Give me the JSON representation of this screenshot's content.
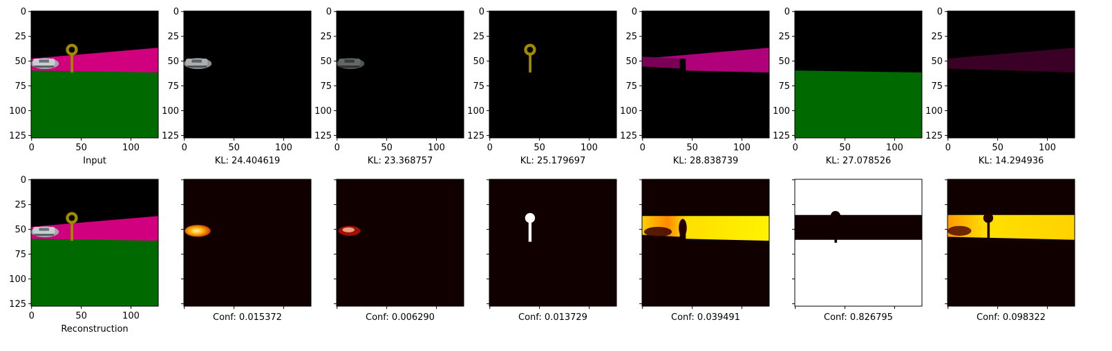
{
  "figure": {
    "tick_values": [
      0,
      25,
      50,
      75,
      100,
      125
    ],
    "x_tick_values": [
      0,
      50,
      100
    ],
    "image_size": 128,
    "top_row": [
      {
        "caption": "Input",
        "kind": "scene"
      },
      {
        "caption": "KL: 24.404619",
        "kind": "car"
      },
      {
        "caption": "KL: 23.368757",
        "kind": "car_dim"
      },
      {
        "caption": "KL: 25.179697",
        "kind": "sign"
      },
      {
        "caption": "KL: 28.838739",
        "kind": "road"
      },
      {
        "caption": "KL: 27.078526",
        "kind": "grass"
      },
      {
        "caption": "KL: 14.294936",
        "kind": "road_dim"
      }
    ],
    "bottom_row": [
      {
        "caption": "Reconstruction",
        "kind": "scene"
      },
      {
        "caption": "Conf: 0.015372",
        "kind": "heat_car"
      },
      {
        "caption": "Conf: 0.006290",
        "kind": "heat_car_dim"
      },
      {
        "caption": "Conf: 0.013729",
        "kind": "heat_sign"
      },
      {
        "caption": "Conf: 0.039491",
        "kind": "heat_road"
      },
      {
        "caption": "Conf: 0.826795",
        "kind": "heat_grass"
      },
      {
        "caption": "Conf: 0.098322",
        "kind": "heat_road2"
      }
    ],
    "colors": {
      "black": "#000000",
      "magenta": "#d0007f",
      "green": "#006a00",
      "sign": "#a08a00",
      "car": "#c8cdd0",
      "heat_dark": "#110000",
      "heat_yellow": "#ffe020",
      "heat_white": "#ffffff"
    }
  }
}
